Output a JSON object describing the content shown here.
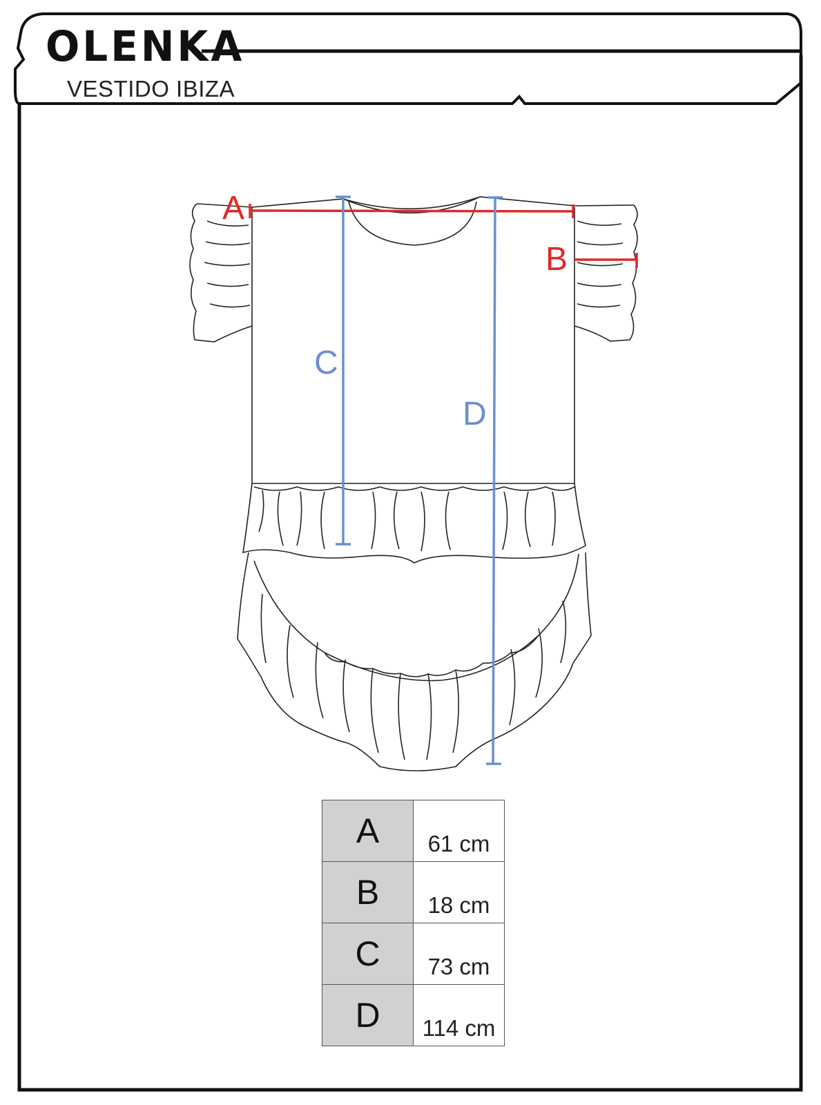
{
  "header": {
    "brand": "OLENKA",
    "product": "VESTIDO IBIZA"
  },
  "diagram": {
    "labels": {
      "a": "A",
      "b": "B",
      "c": "C",
      "d": "D"
    },
    "colors": {
      "horizontal_measure": "#e02828",
      "vertical_measure": "#6b8fd0",
      "outline": "#222222",
      "table_key_bg": "#d0d1d3"
    }
  },
  "size_table": {
    "rows": [
      {
        "key": "A",
        "value": "61 cm"
      },
      {
        "key": "B",
        "value": "18 cm"
      },
      {
        "key": "C",
        "value": "73 cm"
      },
      {
        "key": "D",
        "value": "114 cm"
      }
    ]
  }
}
